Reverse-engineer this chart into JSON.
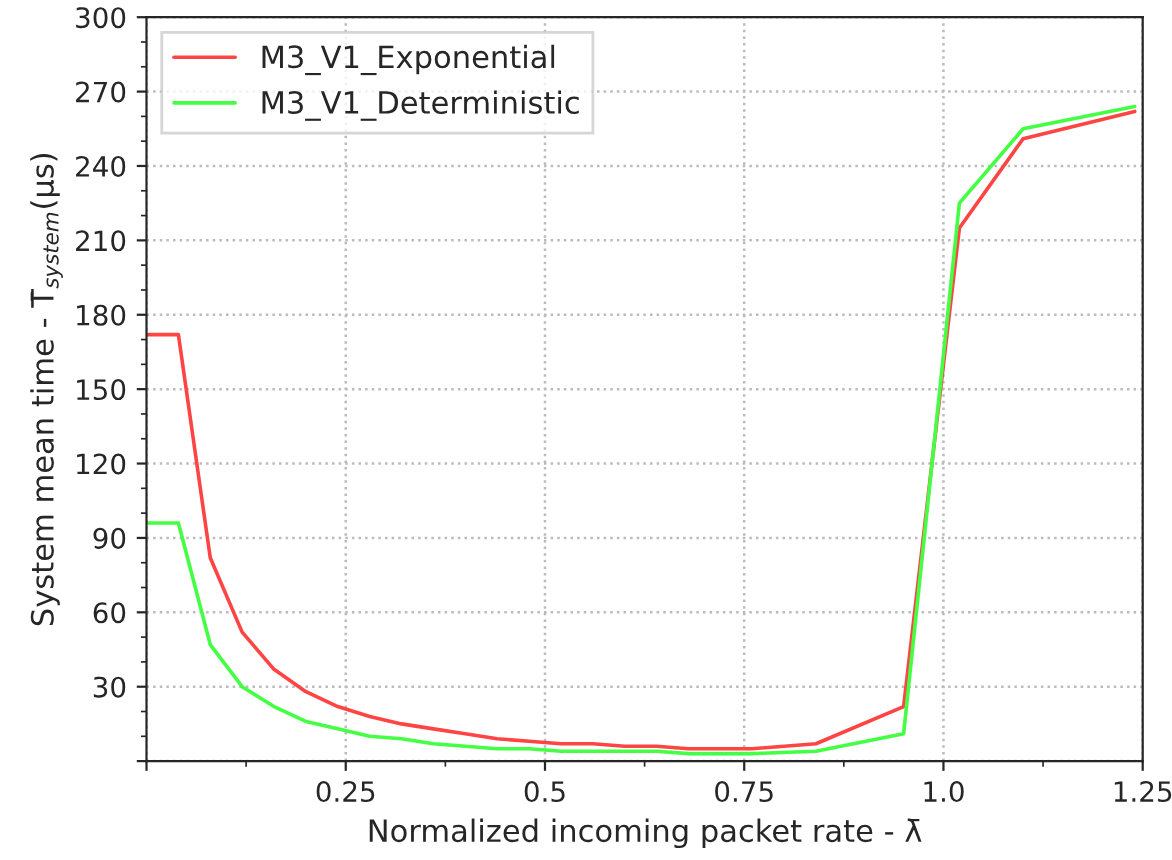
{
  "chart_data": {
    "type": "line",
    "xlabel": "Normalized incoming packet rate - λ̄",
    "ylabel": "System mean time - T̄$_{system}$(μs)",
    "x": [
      0,
      0.04,
      0.08,
      0.12,
      0.16,
      0.2,
      0.24,
      0.28,
      0.32,
      0.36,
      0.4,
      0.44,
      0.48,
      0.52,
      0.56,
      0.6,
      0.64,
      0.68,
      0.72,
      0.76,
      0.84,
      0.95,
      1.02,
      1.1,
      1.24
    ],
    "series": [
      {
        "name": "M3_V1_Exponential",
        "color": "#ff4444",
        "values": [
          172,
          172,
          82,
          52,
          37,
          28,
          22,
          18,
          15,
          13,
          11,
          9,
          8,
          7,
          7,
          6,
          6,
          5,
          5,
          5,
          7,
          22,
          215,
          251,
          262
        ]
      },
      {
        "name": "M3_V1_Deterministic",
        "color": "#44ff44",
        "values": [
          96,
          96,
          47,
          30,
          22,
          16,
          13,
          10,
          9,
          7,
          6,
          5,
          5,
          4,
          4,
          4,
          4,
          3,
          3,
          3,
          4,
          11,
          225,
          255,
          264
        ]
      }
    ],
    "xlim": [
      0,
      1.25
    ],
    "xticks": [
      {
        "value": 0,
        "label": null
      },
      0.25,
      0.5,
      0.75,
      {
        "value": 1,
        "label": "1.0"
      },
      1.25
    ],
    "ylim": [
      0,
      300
    ],
    "yticks": [
      {
        "value": 0,
        "label": null
      },
      30,
      60,
      90,
      120,
      150,
      180,
      210,
      240,
      270,
      300
    ],
    "grid": true,
    "legend": "top left",
    "line_style": "solid",
    "marker": "none"
  }
}
